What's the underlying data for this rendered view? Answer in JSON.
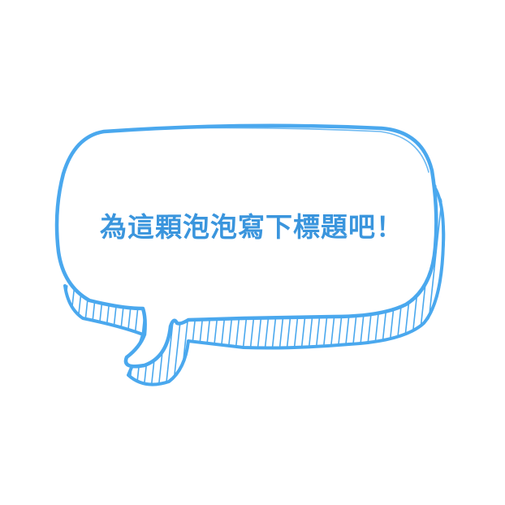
{
  "bubble": {
    "caption": "為這顆泡泡寫下標題吧！",
    "color": "#4aa8ee",
    "text_color": "#3a95dd",
    "icon": "speech-bubble-icon"
  }
}
